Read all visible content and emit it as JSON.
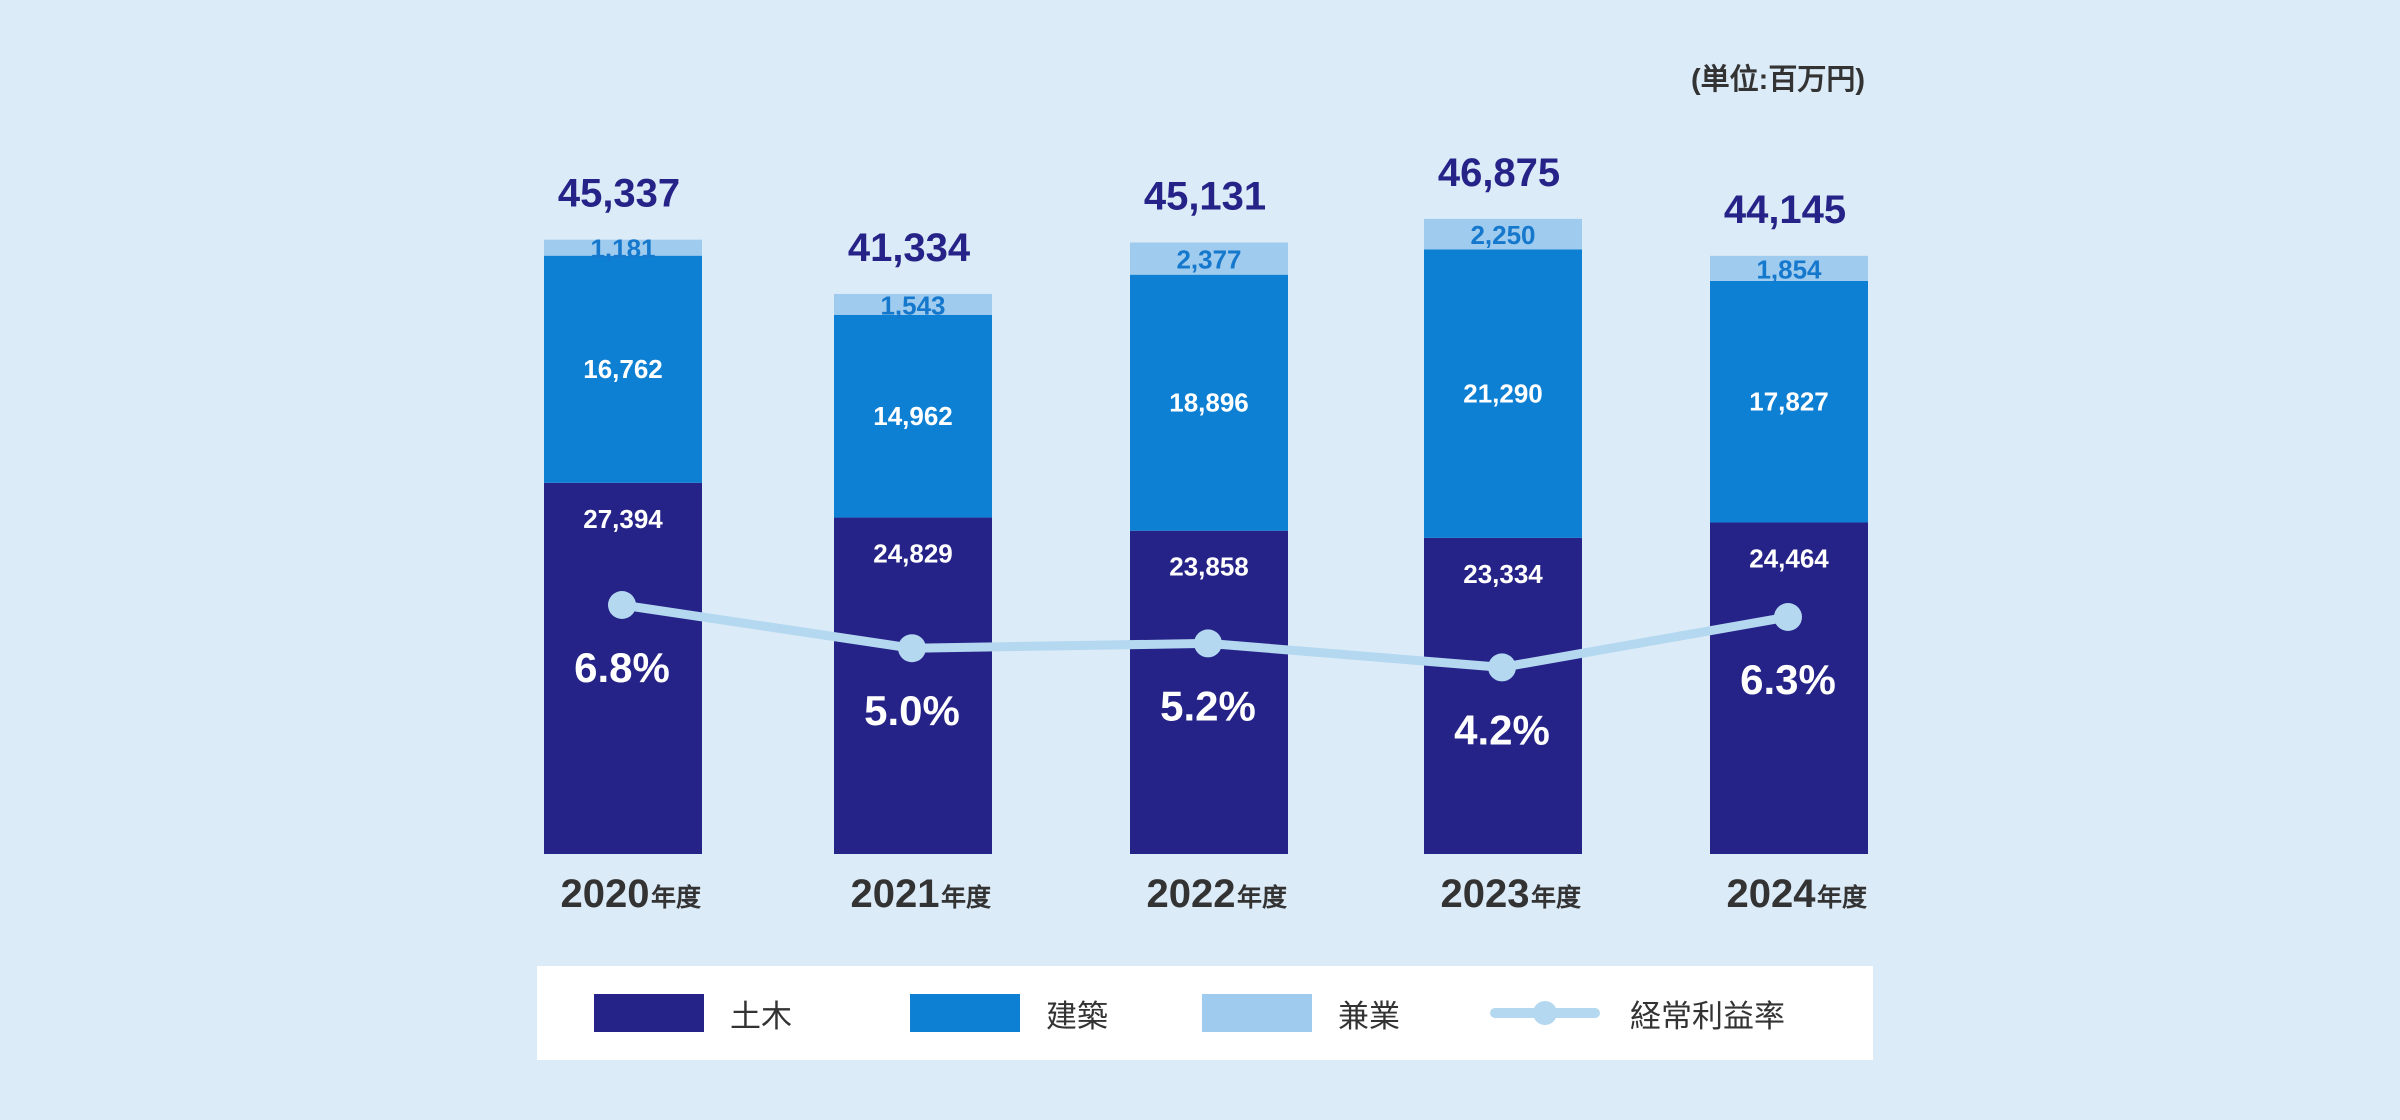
{
  "chart_data": {
    "type": "bar",
    "stacked": true,
    "unit_label": "(単位:百万円)",
    "categories": [
      "2020",
      "2021",
      "2022",
      "2023",
      "2024"
    ],
    "category_suffix": "年度",
    "series": [
      {
        "name": "土木",
        "color": "#262388",
        "values": [
          27394,
          24829,
          23858,
          23334,
          24464
        ]
      },
      {
        "name": "建築",
        "color": "#0e80d4",
        "values": [
          16762,
          14962,
          18896,
          21290,
          17827
        ]
      },
      {
        "name": "兼業",
        "color": "#9ecbee",
        "values": [
          1181,
          1543,
          2377,
          2250,
          1854
        ]
      }
    ],
    "totals": [
      45337,
      41334,
      45131,
      46875,
      44145
    ],
    "line_series": {
      "name": "経常利益率",
      "color": "#b4d8f0",
      "values": [
        6.8,
        5.0,
        5.2,
        4.2,
        6.3
      ],
      "suffix": "%"
    },
    "total_label_color": "#262388",
    "legend": [
      "土木",
      "建築",
      "兼業",
      "経常利益率"
    ],
    "legend_position": "bottom",
    "grid": false
  }
}
